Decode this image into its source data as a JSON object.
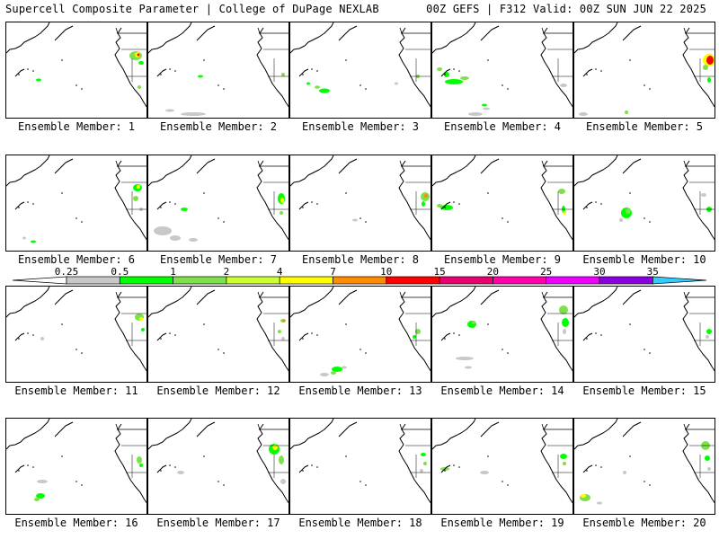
{
  "header": {
    "left": "Supercell Composite Parameter | College of DuPage NEXLAB",
    "right": "00Z GEFS | F312 Valid: 00Z SUN JUN 22 2025"
  },
  "colorbar": {
    "labels": [
      "0.25",
      "0.5",
      "1",
      "2",
      "4",
      "7",
      "10",
      "15",
      "20",
      "25",
      "30",
      "35"
    ],
    "colors": [
      "#c8c8c8",
      "#00ff00",
      "#7ee04a",
      "#ccff33",
      "#ffff00",
      "#ff8c00",
      "#ff0000",
      "#e8006e",
      "#ff00aa",
      "#ee00ff",
      "#8800dd",
      "#aa66ff",
      "#33ccff"
    ]
  },
  "panels": [
    {
      "label": "Ensemble Member: 1"
    },
    {
      "label": "Ensemble Member: 2"
    },
    {
      "label": "Ensemble Member: 3"
    },
    {
      "label": "Ensemble Member: 4"
    },
    {
      "label": "Ensemble Member: 5"
    },
    {
      "label": "Ensemble Member: 6"
    },
    {
      "label": "Ensemble Member: 7"
    },
    {
      "label": "Ensemble Member: 8"
    },
    {
      "label": "Ensemble Member: 9"
    },
    {
      "label": "Ensemble Member: 10"
    },
    {
      "label": "Ensemble Member: 11"
    },
    {
      "label": "Ensemble Member: 12"
    },
    {
      "label": "Ensemble Member: 13"
    },
    {
      "label": "Ensemble Member: 14"
    },
    {
      "label": "Ensemble Member: 15"
    },
    {
      "label": "Ensemble Member: 16"
    },
    {
      "label": "Ensemble Member: 17"
    },
    {
      "label": "Ensemble Member: 18"
    },
    {
      "label": "Ensemble Member: 19"
    },
    {
      "label": "Ensemble Member: 20"
    }
  ]
}
